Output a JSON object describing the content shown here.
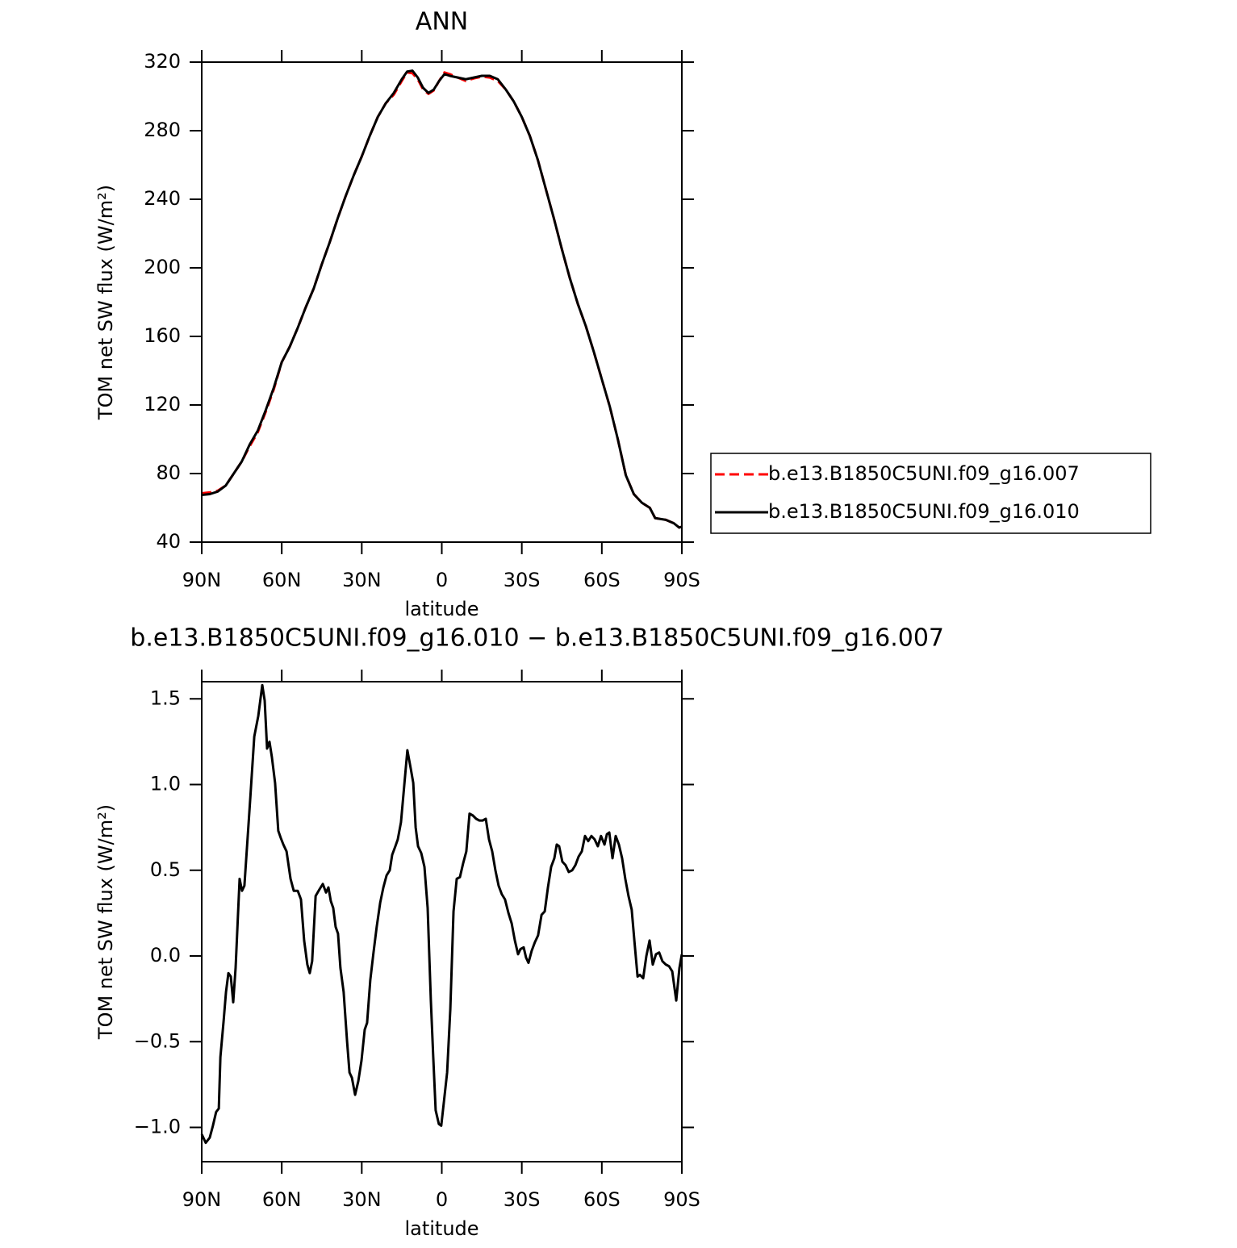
{
  "chart_data": [
    {
      "type": "line",
      "title": "ANN",
      "xlabel": "latitude",
      "ylabel": "TOM net SW flux (W/m²)",
      "x": [
        90,
        87,
        84,
        81,
        78,
        75,
        72,
        69,
        66,
        63,
        60,
        57,
        54,
        51,
        48,
        45,
        42,
        39,
        36,
        33,
        30,
        27,
        24,
        21,
        18,
        15,
        13,
        11,
        9,
        7,
        5,
        3,
        1,
        -1,
        -3,
        -6,
        -9,
        -12,
        -15,
        -18,
        -21,
        -24,
        -27,
        -30,
        -33,
        -36,
        -39,
        -42,
        -45,
        -48,
        -51,
        -54,
        -57,
        -60,
        -63,
        -66,
        -69,
        -72,
        -75,
        -78,
        -80,
        -84,
        -87,
        -89,
        -90
      ],
      "series": [
        {
          "name": "b.e13.B1850C5UNI.f09_g16.007",
          "color": "#ff0000",
          "style": "dashed",
          "values": [
            68.5,
            69,
            70,
            73,
            80,
            87,
            96,
            104,
            116,
            129,
            145,
            154,
            165,
            177,
            188,
            202,
            215,
            229,
            242,
            254,
            265,
            277,
            288,
            296,
            301,
            309,
            314,
            313.5,
            310,
            304,
            301.5,
            303.5,
            309,
            314,
            313,
            311,
            309,
            310.5,
            311.5,
            311,
            309,
            304,
            297,
            288,
            277,
            263,
            246,
            229,
            211,
            194,
            179,
            166,
            151,
            135,
            119,
            100,
            79,
            68,
            63,
            60,
            54,
            53,
            51,
            48.5,
            49
          ]
        },
        {
          "name": "b.e13.B1850C5UNI.f09_g16.010",
          "color": "#000000",
          "style": "solid",
          "values": [
            67.5,
            68,
            69.5,
            73,
            80,
            87,
            97,
            105,
            117,
            130,
            145,
            154,
            165,
            177,
            188,
            202,
            215,
            229,
            242,
            254,
            265,
            277,
            288,
            296,
            302,
            310,
            314.5,
            315,
            311,
            305,
            302,
            304,
            309,
            313,
            312,
            311,
            310,
            311,
            312,
            312,
            310,
            304,
            297,
            288,
            277,
            263,
            246,
            229,
            211,
            194,
            179,
            166,
            151,
            135,
            119,
            100,
            79,
            68,
            63,
            60,
            54,
            53,
            51,
            48.5,
            49
          ]
        }
      ],
      "xlim": [
        90,
        -90
      ],
      "xticks": [
        {
          "value": 90,
          "label": "90N"
        },
        {
          "value": 60,
          "label": "60N"
        },
        {
          "value": 30,
          "label": "30N"
        },
        0,
        {
          "value": -30,
          "label": "30S"
        },
        {
          "value": -60,
          "label": "60S"
        },
        {
          "value": -90,
          "label": "90S"
        }
      ],
      "ylim": [
        40,
        320
      ],
      "yticks": [
        40,
        80,
        120,
        160,
        200,
        240,
        280,
        320
      ],
      "legend": "right"
    },
    {
      "type": "line",
      "title": "b.e13.B1850C5UNI.f09_g16.010 − b.e13.B1850C5UNI.f09_g16.007",
      "xlabel": "latitude",
      "ylabel": "TOM net SW flux (W/m²)",
      "x": [
        90,
        88.5,
        87,
        85.8,
        84.6,
        83.6,
        83,
        81.8,
        80.9,
        80,
        79.1,
        78.2,
        77.3,
        75.8,
        74.9,
        74,
        71.8,
        70.3,
        68.8,
        67.3,
        66.4,
        65.5,
        64.6,
        63.7,
        62.5,
        61.3,
        60.4,
        59.4,
        58.2,
        56.7,
        55.5,
        54,
        52.8,
        51.6,
        50.4,
        49.5,
        48.6,
        47.3,
        45.8,
        44.6,
        43.4,
        42.5,
        41.6,
        40.7,
        39.8,
        38.9,
        38,
        36.8,
        35.5,
        34.6,
        33.7,
        32.5,
        31.3,
        30.1,
        28.9,
        28,
        26.8,
        25.6,
        24.4,
        23.1,
        21.9,
        20.7,
        19.5,
        18.6,
        17.4,
        16.5,
        15.3,
        14.1,
        12.9,
        11.6,
        10.7,
        9.8,
        8.9,
        7.7,
        6.5,
        5.3,
        4.1,
        3.2,
        2.3,
        1.1,
        0.2,
        -0.8,
        -2,
        -3.2,
        -4.4,
        -5.6,
        -6.8,
        -8,
        -9.2,
        -10.4,
        -11.6,
        -12.9,
        -14.1,
        -15.3,
        -16.5,
        -17.7,
        -18.9,
        -20.1,
        -21.3,
        -22.5,
        -23.7,
        -25,
        -26.2,
        -27.4,
        -28.6,
        -29.5,
        -30.7,
        -31.6,
        -32.5,
        -33.7,
        -34.9,
        -36.1,
        -37.4,
        -38.6,
        -39.8,
        -41,
        -42.2,
        -43.1,
        -44,
        -45.2,
        -46.4,
        -47.6,
        -48.9,
        -50.1,
        -51.3,
        -52.5,
        -53.7,
        -54.9,
        -56.1,
        -57.3,
        -58.5,
        -59.7,
        -61,
        -61.9,
        -62.8,
        -64,
        -65.2,
        -66.4,
        -67.6,
        -68.8,
        -70,
        -71.2,
        -72.2,
        -73.4,
        -74.3,
        -75.5,
        -76.7,
        -77.9,
        -79.1,
        -80.3,
        -81.5,
        -82.7,
        -84,
        -85.2,
        -86.4,
        -87.9,
        -89.1,
        -90
      ],
      "series": [
        {
          "color": "#000000",
          "style": "solid",
          "values": [
            -1.04,
            -1.09,
            -1.06,
            -0.99,
            -0.91,
            -0.89,
            -0.59,
            -0.38,
            -0.21,
            -0.1,
            -0.12,
            -0.27,
            -0.07,
            0.45,
            0.38,
            0.41,
            0.92,
            1.28,
            1.4,
            1.58,
            1.49,
            1.21,
            1.25,
            1.16,
            1.01,
            0.73,
            0.69,
            0.65,
            0.61,
            0.45,
            0.38,
            0.38,
            0.33,
            0.09,
            -0.05,
            -0.1,
            -0.03,
            0.35,
            0.39,
            0.42,
            0.37,
            0.4,
            0.32,
            0.28,
            0.17,
            0.13,
            -0.07,
            -0.21,
            -0.5,
            -0.68,
            -0.71,
            -0.81,
            -0.73,
            -0.61,
            -0.43,
            -0.39,
            -0.14,
            0.02,
            0.17,
            0.31,
            0.4,
            0.47,
            0.5,
            0.59,
            0.64,
            0.68,
            0.78,
            0.99,
            1.2,
            1.09,
            1.01,
            0.75,
            0.64,
            0.6,
            0.52,
            0.28,
            -0.26,
            -0.59,
            -0.9,
            -0.98,
            -0.99,
            -0.85,
            -0.68,
            -0.31,
            0.26,
            0.45,
            0.46,
            0.54,
            0.61,
            0.83,
            0.82,
            0.8,
            0.79,
            0.79,
            0.8,
            0.68,
            0.61,
            0.5,
            0.41,
            0.36,
            0.33,
            0.25,
            0.19,
            0.09,
            0.01,
            0.04,
            0.05,
            -0.01,
            -0.04,
            0.03,
            0.08,
            0.12,
            0.24,
            0.26,
            0.4,
            0.52,
            0.57,
            0.65,
            0.64,
            0.55,
            0.53,
            0.49,
            0.5,
            0.53,
            0.58,
            0.61,
            0.7,
            0.67,
            0.7,
            0.68,
            0.64,
            0.7,
            0.65,
            0.71,
            0.72,
            0.57,
            0.7,
            0.65,
            0.57,
            0.45,
            0.35,
            0.27,
            0.09,
            -0.12,
            -0.11,
            -0.13,
            0.0,
            0.09,
            -0.05,
            0.01,
            0.02,
            -0.03,
            -0.05,
            -0.06,
            -0.09,
            -0.26,
            -0.07,
            0.01
          ]
        }
      ],
      "xlim": [
        90,
        -90
      ],
      "xticks": [
        {
          "value": 90,
          "label": "90N"
        },
        {
          "value": 60,
          "label": "60N"
        },
        {
          "value": 30,
          "label": "30N"
        },
        0,
        {
          "value": -30,
          "label": "30S"
        },
        {
          "value": -60,
          "label": "60S"
        },
        {
          "value": -90,
          "label": "90S"
        }
      ],
      "ylim": [
        -1.2,
        1.6
      ],
      "yticks": [
        {
          "value": -1,
          "label": "−1.0"
        },
        {
          "value": -0.5,
          "label": "−0.5"
        },
        {
          "value": 0,
          "label": "0.0"
        },
        0.5,
        {
          "value": 1,
          "label": "1.0"
        },
        1.5
      ]
    }
  ]
}
